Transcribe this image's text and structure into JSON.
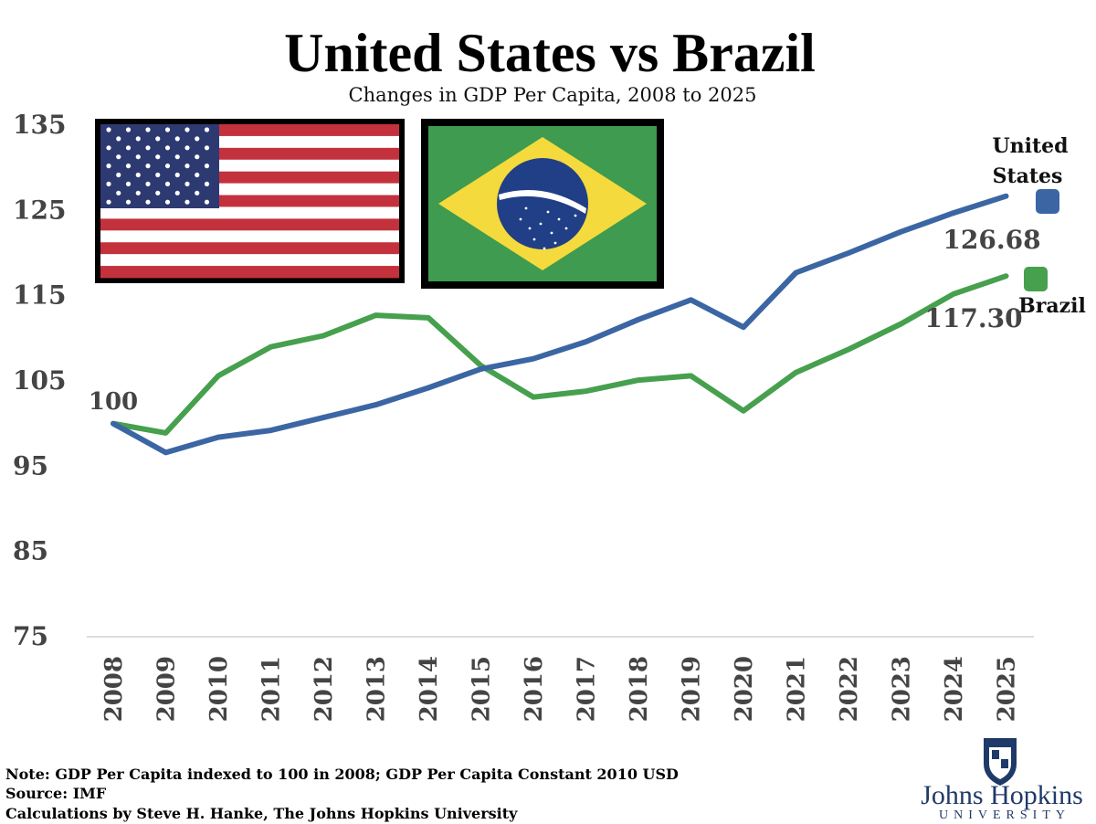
{
  "chart_data": {
    "type": "line",
    "title": "United States vs Brazil",
    "subtitle": "Changes in GDP Per Capita, 2008 to 2025",
    "x": [
      "2008",
      "2009",
      "2010",
      "2011",
      "2012",
      "2013",
      "2014",
      "2015",
      "2016",
      "2017",
      "2018",
      "2019",
      "2020",
      "2021",
      "2022",
      "2023",
      "2024",
      "2025"
    ],
    "yticks": [
      "135",
      "125",
      "115",
      "105",
      "95",
      "85",
      "75"
    ],
    "ylim": [
      75,
      135
    ],
    "series": [
      {
        "name": "United States",
        "color": "#3b66a3",
        "values": [
          100,
          96.6,
          98.4,
          99.2,
          100.7,
          102.2,
          104.2,
          106.4,
          107.6,
          109.6,
          112.2,
          114.5,
          111.3,
          117.7,
          120.0,
          122.5,
          124.7,
          126.68
        ],
        "end_label": "126.68"
      },
      {
        "name": "Brazil",
        "color": "#46a04e",
        "values": [
          100,
          98.9,
          105.6,
          109.0,
          110.3,
          112.7,
          112.4,
          106.8,
          103.1,
          103.8,
          105.1,
          105.6,
          101.5,
          106.0,
          108.7,
          111.7,
          115.2,
          117.3
        ],
        "end_label": "117.30"
      }
    ],
    "start_label": "100",
    "legend_placement": "right",
    "grid": false
  },
  "legend": {
    "us_label_line1": "United",
    "us_label_line2": "States",
    "brazil_label": "Brazil"
  },
  "flags": {
    "us": "united-states-flag",
    "brazil": "brazil-flag"
  },
  "footer": {
    "note": "Note: GDP Per Capita indexed to 100 in 2008; GDP Per Capita Constant 2010 USD",
    "source": "Source: IMF",
    "credit": "Calculations by Steve H. Hanke, The Johns Hopkins University"
  },
  "logo": {
    "main": "Johns Hopkins",
    "sub": "UNIVERSITY",
    "color": "#1f3a68"
  }
}
